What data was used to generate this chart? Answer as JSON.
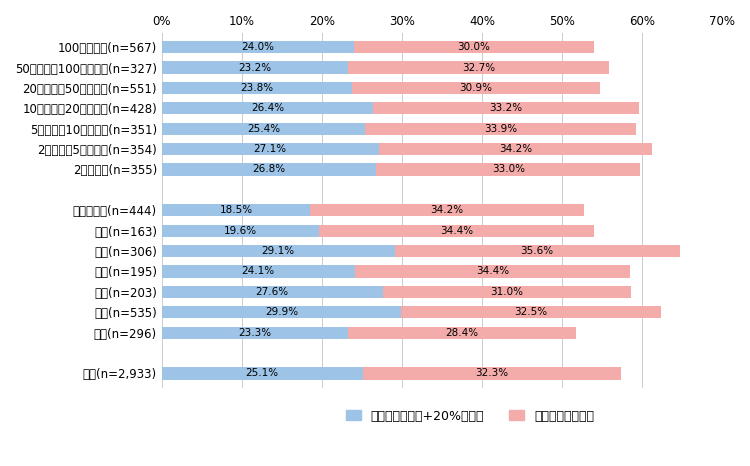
{
  "categories": [
    "100万人以上(n=567)",
    "50万人以上100万人未満(n=327)",
    "20万人以上50万人未満(n=551)",
    "10万人以上20万人未満(n=428)",
    "5万人以上10万人未満(n=351)",
    "2万人以上5万人未満(n=354)",
    "2万人未満(n=355)",
    "",
    "総務・企画(n=444)",
    "税務(n=163)",
    "民生(n=306)",
    "衛生(n=195)",
    "土木(n=203)",
    "教育(n=535)",
    "消防(n=296)",
    " ",
    "合計(n=2,933)"
  ],
  "values_blue": [
    24.0,
    23.2,
    23.8,
    26.4,
    25.4,
    27.1,
    26.8,
    0,
    18.5,
    19.6,
    29.1,
    24.1,
    27.6,
    29.9,
    23.3,
    0,
    25.1
  ],
  "values_pink": [
    30.0,
    32.7,
    30.9,
    33.2,
    33.9,
    34.2,
    33.0,
    0,
    34.2,
    34.4,
    35.6,
    34.4,
    31.0,
    32.5,
    28.4,
    0,
    32.3
  ],
  "labels_blue": [
    "24.0%",
    "23.2%",
    "23.8%",
    "26.4%",
    "25.4%",
    "27.1%",
    "26.8%",
    "",
    "18.5%",
    "19.6%",
    "29.1%",
    "24.1%",
    "27.6%",
    "29.9%",
    "23.3%",
    "",
    "25.1%"
  ],
  "labels_pink": [
    "30.0%",
    "32.7%",
    "30.9%",
    "33.2%",
    "33.9%",
    "34.2%",
    "33.0%",
    "",
    "34.2%",
    "34.4%",
    "35.6%",
    "34.4%",
    "31.0%",
    "32.5%",
    "28.4%",
    "",
    "32.3%"
  ],
  "color_blue": "#9DC3E6",
  "color_pink": "#F4ACAB",
  "legend_blue": "増加している（+20%以上）",
  "legend_pink": "やや増加している",
  "xlim": [
    0,
    70
  ],
  "xticks": [
    0,
    10,
    20,
    30,
    40,
    50,
    60,
    70
  ],
  "xtick_labels": [
    "0%",
    "10%",
    "20%",
    "30%",
    "40%",
    "50%",
    "60%",
    "70%"
  ],
  "figsize": [
    7.5,
    4.66
  ],
  "dpi": 100,
  "bar_height": 0.6,
  "label_fontsize": 7.5,
  "tick_fontsize": 8.5,
  "legend_fontsize": 9
}
